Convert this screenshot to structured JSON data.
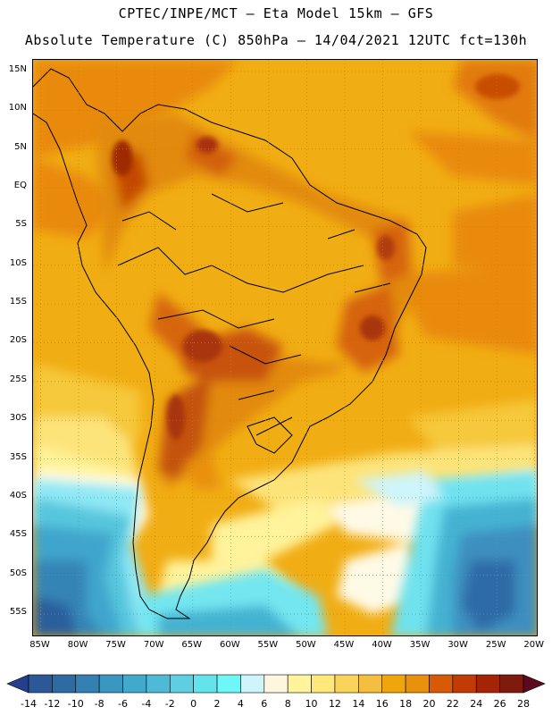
{
  "header": {
    "line1": "CPTEC/INPE/MCT —  Eta Model 15km — GFS",
    "line2": "Absolute Temperature (C) 850hPa — 14/04/2021 12UTC fct=130h"
  },
  "map": {
    "lat_labels": [
      "15N",
      "10N",
      "5N",
      "EQ",
      "5S",
      "10S",
      "15S",
      "20S",
      "25S",
      "30S",
      "35S",
      "40S",
      "45S",
      "50S",
      "55S"
    ],
    "lat_values": [
      15,
      10,
      5,
      0,
      -5,
      -10,
      -15,
      -20,
      -25,
      -30,
      -35,
      -40,
      -45,
      -50,
      -55
    ],
    "lon_labels": [
      "85W",
      "80W",
      "75W",
      "70W",
      "65W",
      "60W",
      "55W",
      "50W",
      "45W",
      "40W",
      "35W",
      "30W",
      "25W",
      "20W"
    ],
    "lon_values": [
      -85,
      -80,
      -75,
      -70,
      -65,
      -60,
      -55,
      -50,
      -45,
      -40,
      -35,
      -30,
      -25,
      -20
    ],
    "lat_range": [
      -58,
      16.5
    ],
    "lon_range": [
      -86,
      -19.5
    ],
    "grid": "dotted"
  },
  "colorbar": {
    "labels": [
      "-14",
      "-12",
      "-10",
      "-8",
      "-6",
      "-4",
      "-2",
      "0",
      "2",
      "4",
      "6",
      "8",
      "10",
      "12",
      "14",
      "16",
      "18",
      "20",
      "22",
      "24",
      "26",
      "28"
    ],
    "colors": [
      "#243f8c",
      "#2c5897",
      "#2f6ba3",
      "#3580b3",
      "#3a97bf",
      "#41a9cc",
      "#4fbad7",
      "#5ecfe2",
      "#63e3ec",
      "#6ef7f7",
      "#cdf5fb",
      "#fff6e0",
      "#fff39b",
      "#ffe77a",
      "#fad45a",
      "#f4bf3e",
      "#efa60d",
      "#e9900c",
      "#d85a07",
      "#c23a05",
      "#a52405",
      "#7e1a0e",
      "#5e0a1e"
    ]
  }
}
